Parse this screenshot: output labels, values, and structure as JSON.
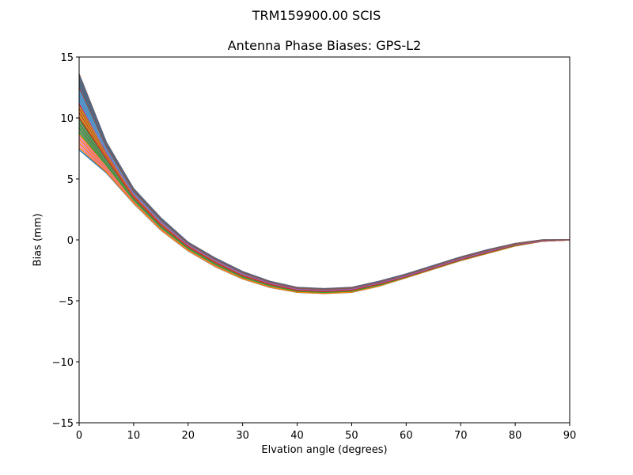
{
  "figure": {
    "suptitle": "TRM159900.00    SCIS",
    "title": "Antenna Phase Biases: GPS-L2",
    "xlabel": "Elvation angle (degrees)",
    "ylabel": "Bias (mm)"
  },
  "chart_data": {
    "type": "line",
    "title": "Antenna Phase Biases: GPS-L2",
    "suptitle": "TRM159900.00    SCIS",
    "xlabel": "Elvation angle (degrees)",
    "ylabel": "Bias (mm)",
    "xlim": [
      0,
      90
    ],
    "ylim": [
      -15,
      15
    ],
    "xticks": [
      0,
      10,
      20,
      30,
      40,
      50,
      60,
      70,
      80,
      90
    ],
    "yticks": [
      -15,
      -10,
      -5,
      0,
      5,
      10,
      15
    ],
    "ytick_labels": [
      "−15",
      "−10",
      "−5",
      "0",
      "5",
      "10",
      "15"
    ],
    "grid": false,
    "legend": null,
    "x": [
      0,
      5,
      10,
      15,
      20,
      25,
      30,
      35,
      40,
      45,
      50,
      55,
      60,
      65,
      70,
      75,
      80,
      85,
      90
    ],
    "series_note": "Many overlapping curves (one per azimuth); envelope shown via min/center/max",
    "envelope": {
      "max": [
        13.6,
        8.0,
        4.2,
        1.8,
        -0.2,
        -1.5,
        -2.6,
        -3.4,
        -3.9,
        -4.0,
        -3.9,
        -3.4,
        -2.8,
        -2.1,
        -1.4,
        -0.8,
        -0.3,
        0.0,
        0.0
      ],
      "center": [
        10.5,
        6.9,
        3.6,
        1.3,
        -0.5,
        -1.8,
        -2.9,
        -3.6,
        -4.1,
        -4.2,
        -4.1,
        -3.6,
        -3.0,
        -2.3,
        -1.6,
        -1.0,
        -0.4,
        -0.1,
        0.0
      ],
      "min": [
        7.4,
        5.5,
        3.0,
        0.8,
        -0.9,
        -2.2,
        -3.2,
        -3.9,
        -4.3,
        -4.4,
        -4.3,
        -3.8,
        -3.1,
        -2.4,
        -1.7,
        -1.1,
        -0.5,
        -0.1,
        0.0
      ]
    },
    "series_count": 36,
    "colors": [
      "#1f77b4",
      "#ff7f0e",
      "#2ca02c",
      "#d62728",
      "#9467bd",
      "#8c564b",
      "#e377c2",
      "#7f7f7f",
      "#bcbd22",
      "#17becf"
    ]
  }
}
